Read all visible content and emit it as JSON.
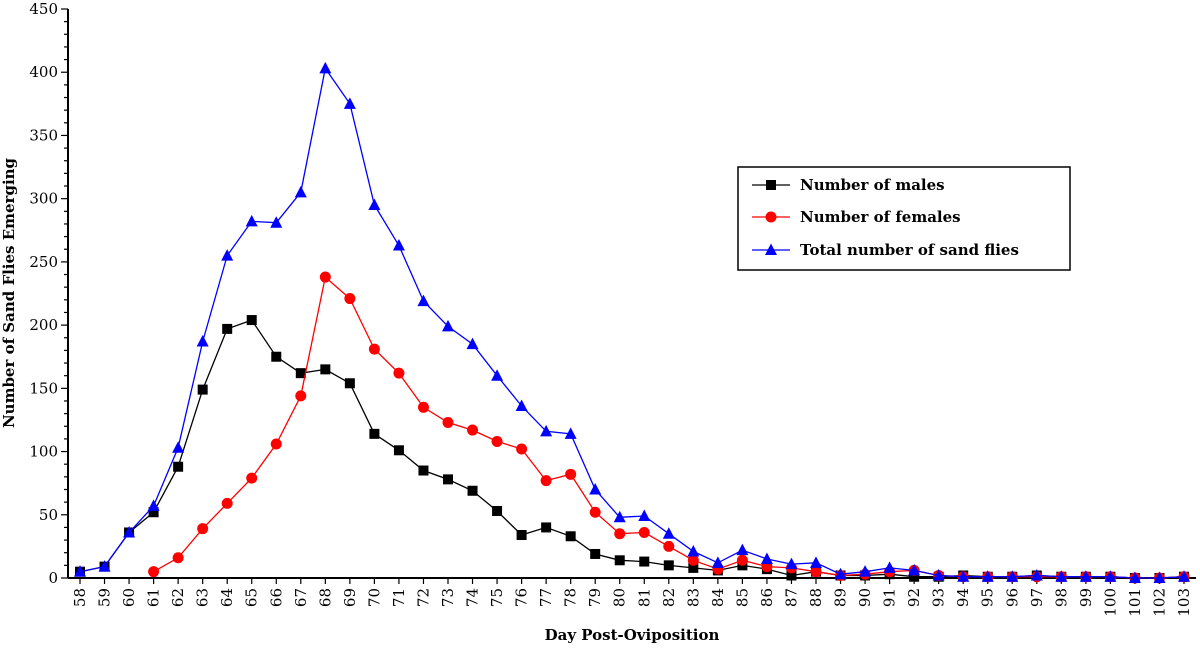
{
  "chart_data": {
    "type": "line",
    "title": "",
    "xlabel": "Day Post-Oviposition",
    "ylabel": "Number of Sand Flies Emerging",
    "ylim": [
      0,
      450
    ],
    "yticks": [
      "0",
      "50",
      "100",
      "150",
      "200",
      "250",
      "300",
      "350",
      "400",
      "450"
    ],
    "x": [
      58,
      59,
      60,
      61,
      62,
      63,
      64,
      65,
      66,
      67,
      68,
      69,
      70,
      71,
      72,
      73,
      74,
      75,
      76,
      77,
      78,
      79,
      80,
      81,
      82,
      83,
      84,
      85,
      86,
      87,
      88,
      89,
      90,
      91,
      92,
      93,
      94,
      95,
      96,
      97,
      98,
      99,
      100,
      101,
      102,
      103
    ],
    "xtick_labels": [
      "58",
      "59",
      "60",
      "61",
      "62",
      "63",
      "64",
      "65",
      "66",
      "67",
      "68",
      "69",
      "70",
      "71",
      "72",
      "73",
      "74",
      "75",
      "76",
      "77",
      "78",
      "79",
      "80",
      "81",
      "82",
      "83",
      "84",
      "85",
      "86",
      "87",
      "88",
      "89",
      "90",
      "91",
      "92",
      "93",
      "94",
      "95",
      "96",
      "97",
      "98",
      "99",
      "100",
      "101",
      "102",
      "103"
    ],
    "grid": false,
    "legend_position": "upper-right",
    "series": [
      {
        "name": "Number of males",
        "color": "#000000",
        "marker": "square",
        "x": [
          58,
          59,
          60,
          61,
          62,
          63,
          64,
          65,
          66,
          67,
          68,
          69,
          70,
          71,
          72,
          73,
          74,
          75,
          76,
          77,
          78,
          79,
          80,
          81,
          82,
          83,
          84,
          85,
          86,
          87,
          88,
          89,
          90,
          91,
          92,
          93,
          94,
          95,
          96,
          97,
          98,
          99,
          100,
          101,
          102,
          103
        ],
        "values": [
          5,
          9,
          36,
          52,
          88,
          149,
          197,
          204,
          175,
          162,
          165,
          154,
          114,
          101,
          85,
          78,
          69,
          53,
          34,
          40,
          33,
          19,
          14,
          13,
          10,
          8,
          6,
          10,
          7,
          2,
          5,
          2,
          2,
          3,
          1,
          1,
          2,
          1,
          1,
          2,
          1,
          1,
          1,
          0,
          0,
          1
        ]
      },
      {
        "name": "Number of females",
        "color": "#ff0000",
        "marker": "circle",
        "x": [
          61,
          62,
          63,
          64,
          65,
          66,
          67,
          68,
          69,
          70,
          71,
          72,
          73,
          74,
          75,
          76,
          77,
          78,
          79,
          80,
          81,
          82,
          83,
          84,
          85,
          86,
          87,
          88,
          89,
          90,
          91,
          92,
          93,
          94,
          95,
          96,
          97,
          98,
          99,
          100,
          101,
          102,
          103
        ],
        "values": [
          5,
          16,
          39,
          59,
          79,
          106,
          144,
          238,
          221,
          181,
          162,
          135,
          123,
          117,
          108,
          102,
          77,
          82,
          52,
          35,
          36,
          25,
          14,
          7,
          14,
          9,
          8,
          5,
          2,
          3,
          5,
          6,
          2,
          1,
          1,
          1,
          1,
          1,
          1,
          1,
          0,
          0,
          1
        ]
      },
      {
        "name": "Total number of sand flies",
        "color": "#0000ff",
        "marker": "triangle",
        "x": [
          58,
          59,
          60,
          61,
          62,
          63,
          64,
          65,
          66,
          67,
          68,
          69,
          70,
          71,
          72,
          73,
          74,
          75,
          76,
          77,
          78,
          79,
          80,
          81,
          82,
          83,
          84,
          85,
          86,
          87,
          88,
          89,
          90,
          91,
          92,
          93,
          94,
          95,
          96,
          97,
          98,
          99,
          100,
          101,
          102,
          103
        ],
        "values": [
          5,
          9,
          36,
          57,
          103,
          187,
          255,
          282,
          281,
          305,
          403,
          375,
          295,
          263,
          219,
          199,
          185,
          160,
          136,
          116,
          114,
          70,
          48,
          49,
          35,
          21,
          12,
          22,
          15,
          11,
          12,
          3,
          5,
          8,
          6,
          2,
          1,
          1,
          1,
          2,
          1,
          1,
          1,
          0,
          0,
          1
        ]
      }
    ]
  }
}
